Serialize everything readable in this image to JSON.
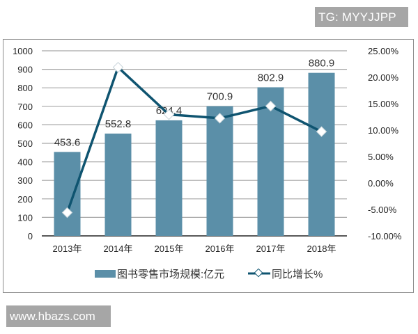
{
  "watermarks": {
    "top": "TG: MYYJJPP",
    "bottom": "www.hbazs.com"
  },
  "colors": {
    "bar": "#5b8fa8",
    "line": "#0f5470",
    "grid": "#a6a6a6",
    "marker_fill": "#ffffff",
    "watermark_bg": "#a6a6a6"
  },
  "chart_data": {
    "type": "bar+line",
    "title": "",
    "categories": [
      "2013年",
      "2014年",
      "2015年",
      "2016年",
      "2017年",
      "2018年"
    ],
    "series": [
      {
        "name": "图书零售市场规模:亿元",
        "type": "bar",
        "axis": "left",
        "values": [
          453.6,
          552.8,
          624.4,
          700.9,
          802.9,
          880.9
        ],
        "data_labels": [
          "453.6",
          "552.8",
          "624.4",
          "700.9",
          "802.9",
          "880.9"
        ]
      },
      {
        "name": "同比增长%",
        "type": "line",
        "axis": "right",
        "values": [
          -5.6,
          21.87,
          12.95,
          12.25,
          14.55,
          9.72
        ]
      }
    ],
    "left_axis": {
      "ylim": [
        0,
        1000
      ],
      "ticks": [
        "1000",
        "900",
        "800",
        "700",
        "600",
        "500",
        "400",
        "300",
        "200",
        "100",
        "0"
      ]
    },
    "right_axis": {
      "ylim": [
        -10,
        25
      ],
      "ticks": [
        "25.00%",
        "20.00%",
        "15.00%",
        "10.00%",
        "5.00%",
        "0.00%",
        "-5.00%",
        "-10.00%"
      ]
    },
    "grid": true,
    "legend_position": "bottom",
    "legend": [
      "图书零售市场规模:亿元",
      "同比增长%"
    ]
  }
}
